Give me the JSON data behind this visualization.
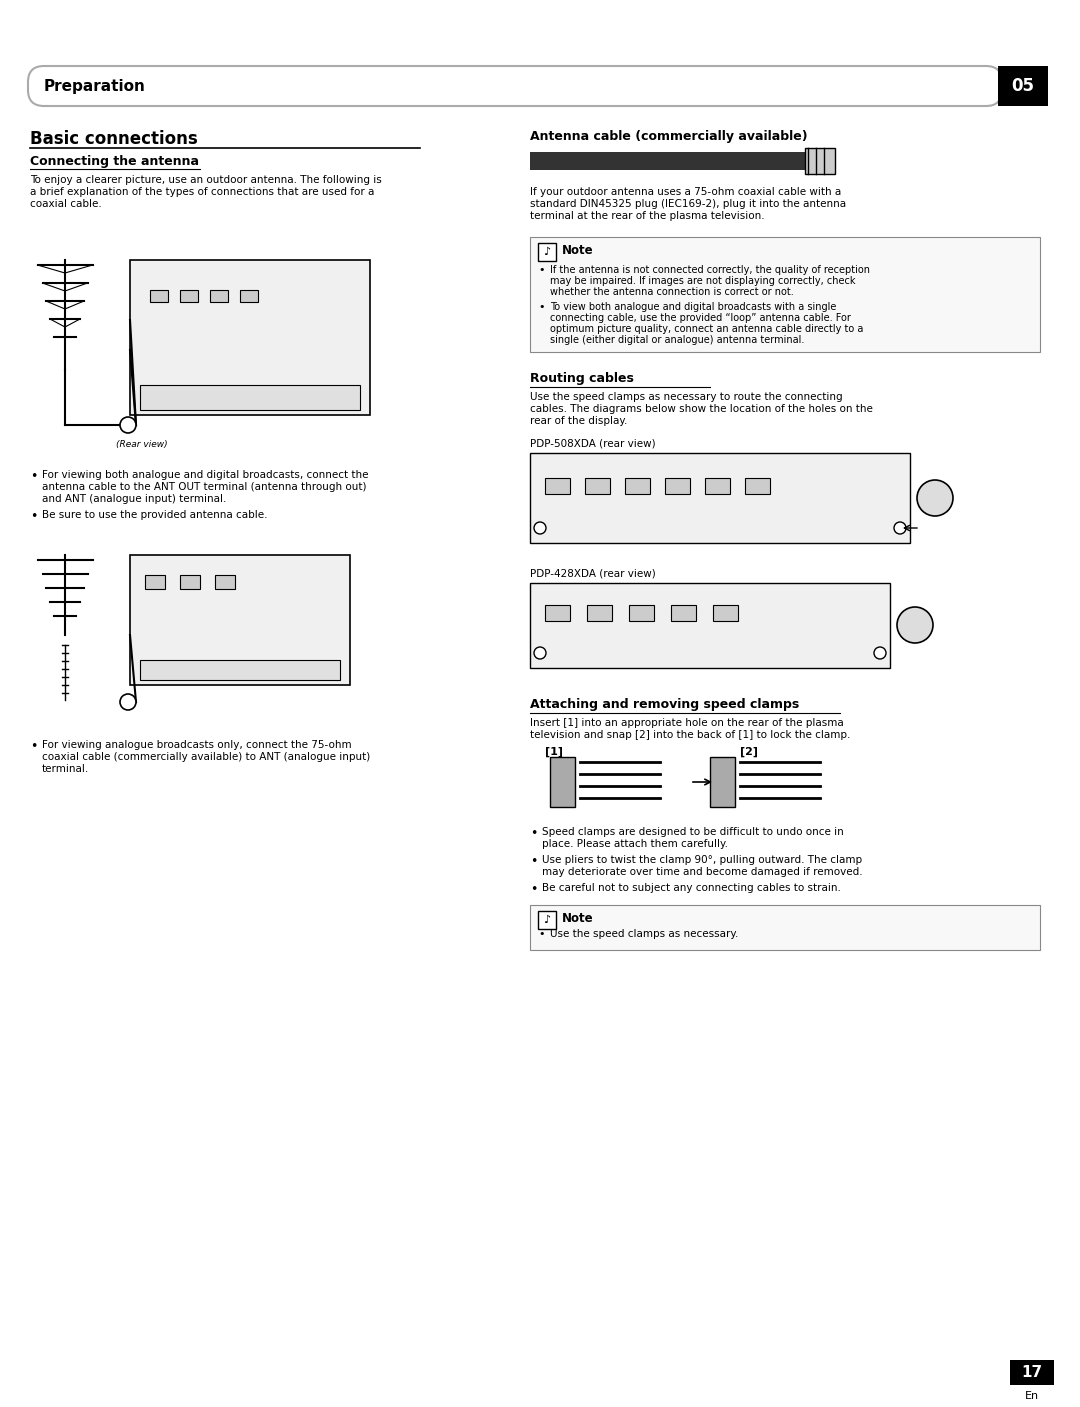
{
  "bg_color": "#ffffff",
  "text_color": "#000000",
  "page_width": 10.8,
  "page_height": 14.07,
  "header_text": "Preparation",
  "header_number": "05",
  "page_number": "17",
  "page_number_sub": "En",
  "left_col_title": "Basic connections",
  "left_col_subtitle1": "Connecting the antenna",
  "left_col_body1": "To enjoy a clearer picture, use an outdoor antenna. The following is\na brief explanation of the types of connections that are used for a\ncoaxial cable.",
  "left_bullet1": "For viewing both analogue and digital broadcasts, connect the\nantenna cable to the ANT OUT terminal (antenna through out)\nand ANT (analogue input) terminal.",
  "left_bullet2": "Be sure to use the provided antenna cable.",
  "left_bullet3": "For viewing analogue broadcasts only, connect the 75-ohm\ncoaxial cable (commercially available) to ANT (analogue input)\nterminal.",
  "right_col_title1": "Antenna cable (commercially available)",
  "right_col_body1": "If your outdoor antenna uses a 75-ohm coaxial cable with a\nstandard DIN45325 plug (IEC169-2), plug it into the antenna\nterminal at the rear of the plasma television.",
  "note_text1": "Note",
  "note_bullet1": "If the antenna is not connected correctly, the quality of reception\nmay be impaired. If images are not displaying correctly, check\nwhether the antenna connection is correct or not.",
  "note_bullet2": "To view both analogue and digital broadcasts with a single\nconnecting cable, use the provided “loop” antenna cable. For\noptimum picture quality, connect an antenna cable directly to a\nsingle (either digital or analogue) antenna terminal.",
  "routing_title": "Routing cables",
  "routing_body": "Use the speed clamps as necessary to route the connecting\ncables. The diagrams below show the location of the holes on the\nrear of the display.",
  "label_508": "PDP-508XDA (rear view)",
  "label_428": "PDP-428XDA (rear view)",
  "attach_title": "Attaching and removing speed clamps",
  "attach_body": "Insert [1] into an appropriate hole on the rear of the plasma\ntelevision and snap [2] into the back of [1] to lock the clamp.",
  "attach_bullet1": "Speed clamps are designed to be difficult to undo once in\nplace. Please attach them carefully.",
  "attach_bullet2": "Use pliers to twist the clamp 90°, pulling outward. The clamp\nmay deteriorate over time and become damaged if removed.",
  "attach_bullet3": "Be careful not to subject any connecting cables to strain.",
  "note_text2": "Note",
  "note_bullet3": "Use the speed clamps as necessary.",
  "rear_view_label": "(Rear view)"
}
